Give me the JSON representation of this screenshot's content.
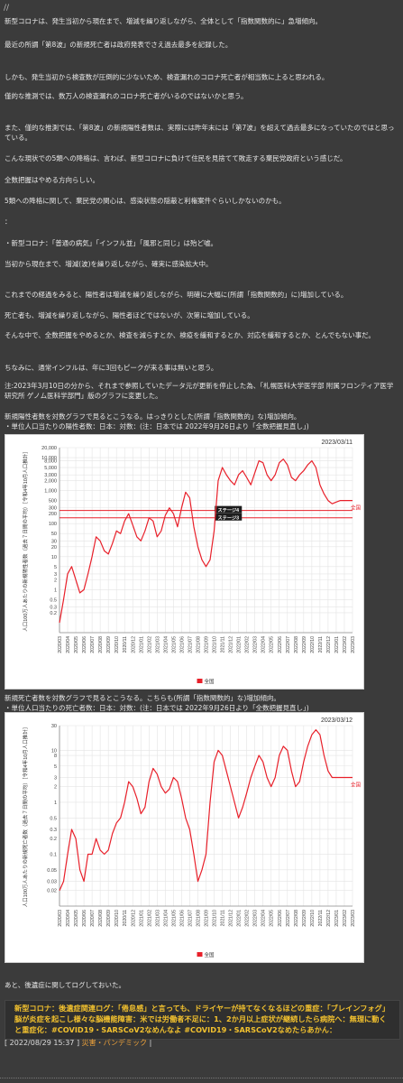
{
  "header": {
    "marker": "//"
  },
  "paragraphs": [
    "新型コロナは、発生当初から現在まで、増減を繰り返しながら、全体として「指数関数的に」急増傾向。",
    "最近の所謂「第8波」の新規死亡者は政府発表でさえ過去最多を記録した。",
    "しかも、発生当初から検査数が圧倒的に少ないため、検査漏れのコロナ死亡者が相当数に上ると思われる。",
    "僅的な推測では、数万人の検査漏れのコロナ死亡者がいるのではないかと思う。",
    "また、僅的な推測では、「第8波」の新規陽性者数は、実際には昨年末には「第7波」を超えて過去最多になっていたのではと思っている。",
    "こんな現状での5類への降格は、言わば、新型コロナに負けて住民を見捨てて敗走する棄民党政府という感じだ。",
    "全数把握はやめる方向らしい。",
    "5類への降格に関して、棄民党の関心は、感染状態の隠蔽と利権案件ぐらいしかないのかも。",
    "：",
    "・新型コロナ：「普通の病気」「インフル並」「風邪と同じ」は殆ど嘘。",
    "当初から現在まで、増減(波)を繰り返しながら、確実に感染拡大中。",
    "これまでの経過をみると、陽性者は増減を繰り返しながら、明確に大幅に(所謂「指数関数的」に)増加している。",
    "死亡者も、増減を繰り返しながら、陽性者ほどではないが、次第に増加している。",
    "そんな中で、全数把握をやめるとか、検査を減らすとか、検疫を緩和するとか、対応を緩和するとか、とんでもない事だ。",
    "ちなみに、通常インフルは、年に3回もピークが来る事は無いと思う。",
    "注:2023年3月10日の分から、それまで参照していたデータ元が更新を停止した為、「札幌医科大学医学部 附属フロンティア医学研究所 ゲノム医科学部門」版のグラフに変更した。",
    "新規陽性者数を対数グラフで見るとこうなる。はっきりとした(所謂「指数関数的」な)増加傾向。\n・単位人口当たりの陽性者数：日本：対数：(注：日本では 2022年9月26日より「全数把握見直し」)",
    "新規死亡者数を対数グラフで見るとこうなる。こちらも(所謂「指数関数的」な)増加傾向。\n・単位人口当たりの死亡者数：日本：対数：(注：日本では 2022年9月26日より「全数把握見直し」)",
    "あと、後遺症に関してログしておいた。"
  ],
  "banner": {
    "text": "新型コロナ：後遺症関連ログ：「倦怠感」と言っても、ドライヤーが持てなくなるほどの重症：「ブレインフォグ」脳が炎症を起こし様々な脳機能障害：米では労働者不足に：1、2か月以上症状が継続したら病院へ：無理に動くと重症化：#COVID19・SARSCoV2なめんなよ #COVID19・SARSCoV2なめたらあかん："
  },
  "meta": {
    "open": "[",
    "date": "2022/08/29 15:37",
    "sep": "]",
    "category": "災害・パンデミック",
    "close": "|"
  },
  "colors": {
    "line": "#e8202a",
    "grid": "#e4e4e4"
  },
  "chart_data": [
    {
      "type": "line",
      "date_label": "2023/03/11",
      "ylabel": "人口100万人あたりの新規陽性者数（過去７日間の平均）［令和4年10月人口推計］",
      "log_scale": true,
      "ylim": [
        0.05,
        20000
      ],
      "y_ticks": [
        "20,000",
        "10,000",
        "8,000",
        "5,000",
        "3,000",
        "2,000",
        "1,000",
        "500",
        "300",
        "200",
        "100",
        "50",
        "30",
        "20",
        "10",
        "5",
        "3",
        "2",
        "1",
        "0.5",
        "0.3",
        "0.2"
      ],
      "x_ticks": [
        "2020/03",
        "2020/04",
        "2020/05",
        "2020/06",
        "2020/07",
        "2020/08",
        "2020/09",
        "2020/10",
        "2020/11",
        "2020/12",
        "2021/01",
        "2021/02",
        "2021/03",
        "2021/04",
        "2021/05",
        "2021/06",
        "2021/07",
        "2021/08",
        "2021/09",
        "2021/10",
        "2021/11",
        "2021/12",
        "2022/01",
        "2022/02",
        "2022/03",
        "2022/04",
        "2022/05",
        "2022/06",
        "2022/07",
        "2022/08",
        "2022/09",
        "2022/10",
        "2022/11",
        "2022/12",
        "2023/01",
        "2023/02",
        "2023/03"
      ],
      "reference_lines": [
        {
          "value": 250,
          "label": "ステージ4"
        },
        {
          "value": 150,
          "label": "ステージ3"
        }
      ],
      "series": [
        {
          "name": "全国",
          "x": [
            0,
            0.5,
            1,
            1.5,
            2,
            2.5,
            3,
            3.5,
            4,
            4.5,
            5,
            5.5,
            6,
            6.5,
            7,
            7.5,
            8,
            8.5,
            9,
            9.5,
            10,
            10.5,
            11,
            11.5,
            12,
            12.5,
            13,
            13.5,
            14,
            14.5,
            15,
            15.5,
            16,
            16.5,
            17,
            17.5,
            18,
            18.5,
            19,
            19.5,
            20,
            20.5,
            21,
            21.5,
            22,
            22.5,
            23,
            23.5,
            24,
            24.5,
            25,
            25.5,
            26,
            26.5,
            27,
            27.5,
            28,
            28.5,
            29,
            29.5,
            30,
            30.5,
            31,
            31.5,
            32,
            32.5,
            33,
            33.5,
            34,
            34.5,
            35,
            35.5,
            36
          ],
          "y": [
            0.1,
            0.5,
            3,
            5,
            2,
            0.8,
            1,
            3,
            10,
            40,
            30,
            15,
            12,
            25,
            60,
            50,
            120,
            200,
            90,
            40,
            30,
            60,
            150,
            120,
            40,
            60,
            180,
            300,
            200,
            80,
            300,
            900,
            600,
            80,
            20,
            8,
            5,
            8,
            60,
            2000,
            5000,
            3000,
            2000,
            1500,
            3000,
            4000,
            2500,
            1500,
            3500,
            8000,
            7000,
            3000,
            2000,
            3000,
            7000,
            9000,
            6000,
            2500,
            2000,
            3000,
            4000,
            6000,
            8000,
            5000,
            1500,
            800,
            500,
            400,
            450,
            500,
            500,
            500,
            500
          ]
        }
      ]
    },
    {
      "type": "line",
      "date_label": "2023/03/12",
      "ylabel": "人口100万人あたりの新規死亡者数（過去７日間の平均）［令和4年10月人口推計］",
      "log_scale": true,
      "ylim": [
        0.01,
        30
      ],
      "y_ticks": [
        "30",
        "10",
        "8",
        "5",
        "3",
        "2",
        "1",
        "0.5",
        "0.3",
        "0.2",
        "0.1",
        "0.05",
        "0.03",
        "0.02"
      ],
      "x_ticks": [
        "2020/03",
        "2020/04",
        "2020/05",
        "2020/06",
        "2020/07",
        "2020/08",
        "2020/09",
        "2020/10",
        "2020/11",
        "2020/12",
        "2021/01",
        "2021/02",
        "2021/03",
        "2021/04",
        "2021/05",
        "2021/06",
        "2021/07",
        "2021/08",
        "2021/09",
        "2021/10",
        "2021/11",
        "2021/12",
        "2022/01",
        "2022/02",
        "2022/03",
        "2022/04",
        "2022/05",
        "2022/06",
        "2022/07",
        "2022/08",
        "2022/09",
        "2022/10",
        "2022/11",
        "2022/12",
        "2023/01",
        "2023/02",
        "2023/03"
      ],
      "series": [
        {
          "name": "全国",
          "x": [
            0,
            0.5,
            1,
            1.5,
            2,
            2.5,
            3,
            3.5,
            4,
            4.5,
            5,
            5.5,
            6,
            6.5,
            7,
            7.5,
            8,
            8.5,
            9,
            9.5,
            10,
            10.5,
            11,
            11.5,
            12,
            12.5,
            13,
            13.5,
            14,
            14.5,
            15,
            15.5,
            16,
            16.5,
            17,
            17.5,
            18,
            18.5,
            19,
            19.5,
            20,
            20.5,
            21,
            21.5,
            22,
            22.5,
            23,
            23.5,
            24,
            24.5,
            25,
            25.5,
            26,
            26.5,
            27,
            27.5,
            28,
            28.5,
            29,
            29.5,
            30,
            30.5,
            31,
            31.5,
            32,
            32.5,
            33,
            33.5,
            34,
            34.5,
            35,
            35.5,
            36
          ],
          "y": [
            0.02,
            0.03,
            0.1,
            0.3,
            0.2,
            0.05,
            0.03,
            0.1,
            0.1,
            0.2,
            0.12,
            0.1,
            0.12,
            0.25,
            0.4,
            0.5,
            1.0,
            2.5,
            2.0,
            1.2,
            0.6,
            0.8,
            2.5,
            4.5,
            3.5,
            2.0,
            1.5,
            1.8,
            3.0,
            2.5,
            1.2,
            0.5,
            0.3,
            0.1,
            0.03,
            0.05,
            0.1,
            1.0,
            6.0,
            10.0,
            8.0,
            4.0,
            2.0,
            1.0,
            0.5,
            0.8,
            1.5,
            3.0,
            5.0,
            8.0,
            6.0,
            3.0,
            2.0,
            3.0,
            8.0,
            12.0,
            10.0,
            4.0,
            2.0,
            2.5,
            6.0,
            12.0,
            20.0,
            25.0,
            20.0,
            8.0,
            4.0,
            3.0,
            3.0,
            3.0,
            3.0,
            3.0,
            3.0
          ]
        }
      ]
    }
  ]
}
